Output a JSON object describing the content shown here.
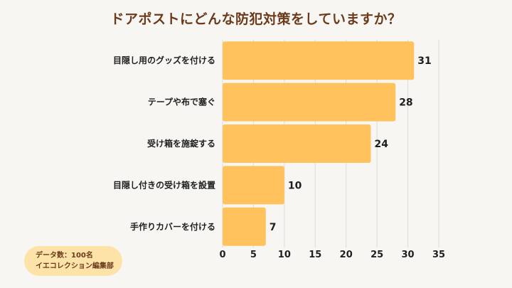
{
  "chart_data": {
    "type": "bar",
    "orientation": "horizontal",
    "title": "ドアポストにどんな防犯対策をしていますか？",
    "categories": [
      "目隠し用のグッズを付ける",
      "テープや布で塞ぐ",
      "受け箱を施錠する",
      "目隠し付きの受け箱を設置",
      "手作りカバーを付ける"
    ],
    "values": [
      31,
      28,
      24,
      10,
      7
    ],
    "xlim": [
      0,
      35
    ],
    "xticks": [
      "0",
      "5",
      "10",
      "15",
      "20",
      "25",
      "30",
      "35"
    ],
    "grid": true,
    "bar_color": "#ffc25c",
    "gridline_color": "#dcdcdc"
  },
  "source": {
    "line1": "データ数：100名",
    "line2": "イエコレクション編集部"
  },
  "colors": {
    "background": "#f7f6f3",
    "title": "#6b3a1a",
    "badge": "#fde3a8"
  }
}
